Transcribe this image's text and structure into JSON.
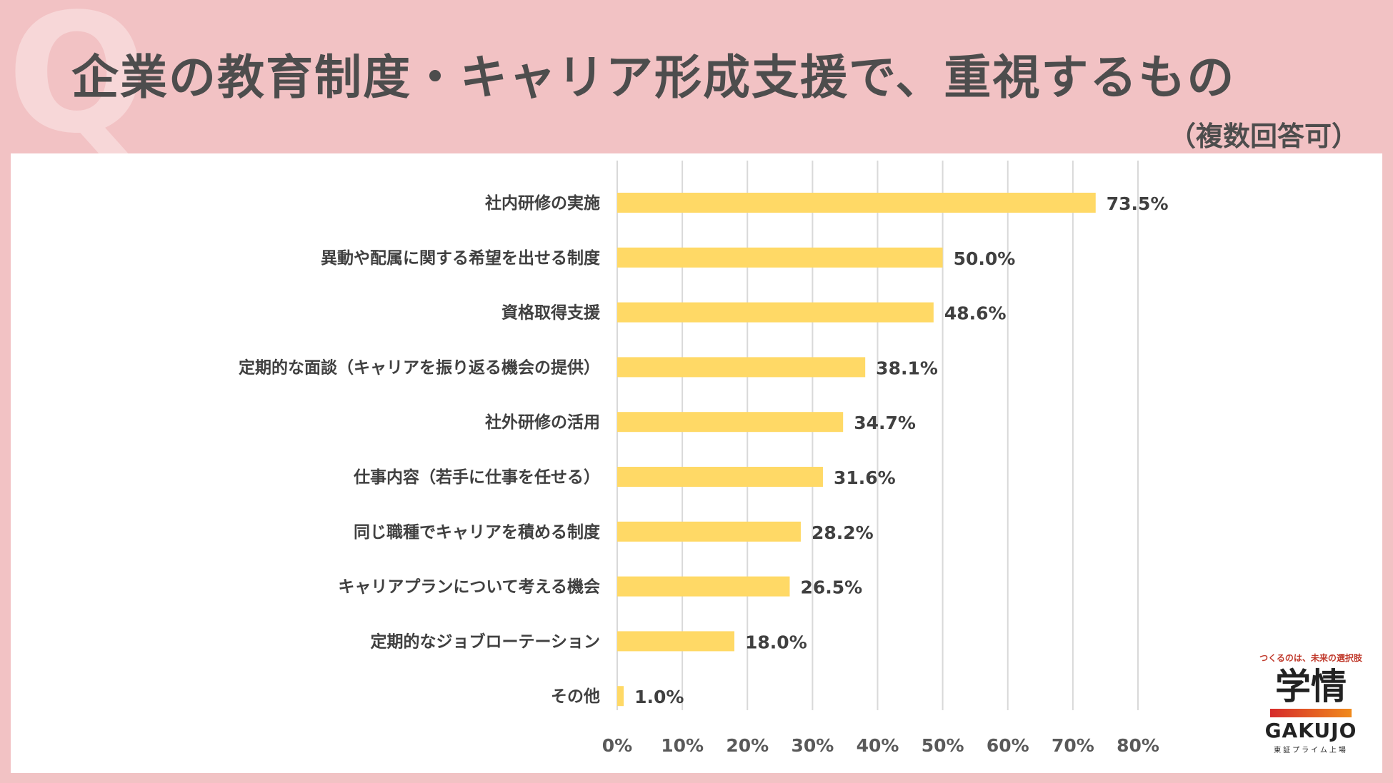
{
  "header": {
    "q_mark": "Q",
    "title": "企業の教育制度・キャリア形成支援で、重視するもの",
    "subtitle": "（複数回答可）"
  },
  "colors": {
    "background": "#f2c2c4",
    "bar": "#ffd966",
    "grid": "#d9d9d9"
  },
  "chart_data": {
    "type": "bar",
    "orientation": "horizontal",
    "categories": [
      "社内研修の実施",
      "異動や配属に関する希望を出せる制度",
      "資格取得支援",
      "定期的な面談（キャリアを振り返る機会の提供）",
      "社外研修の活用",
      "仕事内容（若手に仕事を任せる）",
      "同じ職種でキャリアを積める制度",
      "キャリアプランについて考える機会",
      "定期的なジョブローテーション",
      "その他"
    ],
    "values": [
      73.5,
      50.0,
      48.6,
      38.1,
      34.7,
      31.6,
      28.2,
      26.5,
      18.0,
      1.0
    ],
    "value_labels": [
      "73.5%",
      "50.0%",
      "48.6%",
      "38.1%",
      "34.7%",
      "31.6%",
      "28.2%",
      "26.5%",
      "18.0%",
      "1.0%"
    ],
    "xlim": [
      0,
      80
    ],
    "ticks": [
      0,
      10,
      20,
      30,
      40,
      50,
      60,
      70,
      80
    ],
    "tick_labels": [
      "0%",
      "10%",
      "20%",
      "30%",
      "40%",
      "50%",
      "60%",
      "70%",
      "80%"
    ],
    "grid": true
  },
  "logo": {
    "tagline": "つくるのは、未来の選択肢",
    "mark": "学情",
    "en": "GAKUJO",
    "listed": "東証プライム上場"
  }
}
